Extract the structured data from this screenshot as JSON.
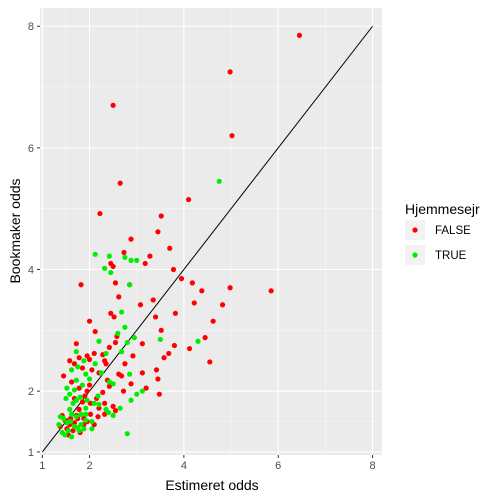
{
  "chart_data": {
    "type": "scatter",
    "title": "",
    "xlabel": "Estimeret odds",
    "ylabel": "Bookmaker odds",
    "xlim": [
      0.95,
      8.2
    ],
    "ylim": [
      0.95,
      8.3
    ],
    "x_ticks": [
      1,
      2,
      4,
      6,
      8
    ],
    "y_ticks": [
      1,
      2,
      4,
      6,
      8
    ],
    "grid": true,
    "background": "#ebebeb",
    "reference_line": {
      "type": "identity",
      "from": [
        1,
        1
      ],
      "to": [
        8,
        8
      ],
      "color": "#000000"
    },
    "legend": {
      "title": "Hjemmesejr",
      "position": "right",
      "entries": [
        {
          "label": "FALSE",
          "color": "#ff0000"
        },
        {
          "label": "TRUE",
          "color": "#00ee00"
        }
      ]
    },
    "series": [
      {
        "name": "FALSE",
        "color": "#ff0000",
        "points": [
          [
            6.45,
            7.85
          ],
          [
            4.98,
            7.25
          ],
          [
            5.02,
            6.2
          ],
          [
            2.5,
            6.7
          ],
          [
            2.65,
            5.42
          ],
          [
            4.1,
            5.15
          ],
          [
            2.22,
            4.92
          ],
          [
            3.52,
            4.88
          ],
          [
            3.45,
            4.62
          ],
          [
            2.88,
            4.5
          ],
          [
            3.7,
            4.35
          ],
          [
            2.73,
            4.28
          ],
          [
            3.28,
            4.22
          ],
          [
            3.18,
            4.1
          ],
          [
            2.45,
            4.1
          ],
          [
            2.5,
            4.05
          ],
          [
            3.78,
            4.0
          ],
          [
            3.95,
            3.85
          ],
          [
            4.18,
            3.78
          ],
          [
            2.55,
            3.78
          ],
          [
            2.85,
            3.75
          ],
          [
            1.82,
            3.75
          ],
          [
            4.38,
            3.65
          ],
          [
            4.98,
            3.7
          ],
          [
            5.85,
            3.65
          ],
          [
            2.62,
            3.55
          ],
          [
            3.35,
            3.5
          ],
          [
            4.22,
            3.45
          ],
          [
            3.08,
            3.42
          ],
          [
            4.82,
            3.42
          ],
          [
            2.45,
            3.28
          ],
          [
            2.52,
            3.22
          ],
          [
            3.4,
            3.22
          ],
          [
            3.82,
            3.28
          ],
          [
            4.62,
            3.15
          ],
          [
            2.0,
            3.15
          ],
          [
            3.52,
            3.0
          ],
          [
            2.12,
            2.98
          ],
          [
            4.45,
            2.88
          ],
          [
            2.58,
            2.9
          ],
          [
            2.55,
            2.8
          ],
          [
            3.12,
            2.78
          ],
          [
            1.72,
            2.78
          ],
          [
            2.42,
            2.72
          ],
          [
            2.1,
            2.62
          ],
          [
            2.92,
            2.58
          ],
          [
            2.28,
            2.6
          ],
          [
            1.95,
            2.58
          ],
          [
            1.78,
            2.55
          ],
          [
            3.8,
            2.75
          ],
          [
            4.12,
            2.7
          ],
          [
            3.68,
            2.62
          ],
          [
            2.32,
            2.5
          ],
          [
            3.58,
            2.55
          ],
          [
            4.55,
            2.48
          ],
          [
            1.58,
            2.5
          ],
          [
            1.68,
            2.45
          ],
          [
            2.0,
            2.52
          ],
          [
            2.35,
            2.45
          ],
          [
            2.75,
            2.45
          ],
          [
            3.42,
            2.35
          ],
          [
            2.05,
            2.35
          ],
          [
            1.85,
            2.38
          ],
          [
            3.12,
            2.3
          ],
          [
            2.2,
            2.3
          ],
          [
            2.62,
            2.28
          ],
          [
            1.45,
            2.25
          ],
          [
            2.68,
            2.25
          ],
          [
            2.38,
            2.18
          ],
          [
            3.45,
            2.2
          ],
          [
            2.88,
            2.12
          ],
          [
            3.2,
            2.05
          ],
          [
            2.0,
            2.1
          ],
          [
            1.62,
            2.15
          ],
          [
            1.78,
            2.05
          ],
          [
            2.42,
            2.08
          ],
          [
            2.72,
            2.0
          ],
          [
            2.28,
            1.98
          ],
          [
            1.95,
            2.0
          ],
          [
            3.48,
            1.95
          ],
          [
            1.9,
            1.92
          ],
          [
            2.15,
            1.88
          ],
          [
            1.68,
            1.88
          ],
          [
            1.85,
            1.82
          ],
          [
            2.32,
            1.8
          ],
          [
            2.02,
            1.8
          ],
          [
            2.5,
            1.75
          ],
          [
            2.2,
            1.72
          ],
          [
            2.55,
            1.68
          ],
          [
            1.78,
            1.7
          ],
          [
            2.02,
            1.62
          ],
          [
            2.32,
            1.62
          ],
          [
            1.72,
            1.6
          ],
          [
            2.18,
            1.58
          ],
          [
            1.88,
            1.55
          ],
          [
            1.42,
            1.6
          ],
          [
            1.6,
            1.55
          ],
          [
            1.48,
            1.52
          ],
          [
            1.95,
            1.5
          ],
          [
            1.68,
            1.48
          ],
          [
            1.88,
            1.45
          ],
          [
            1.58,
            1.45
          ],
          [
            2.1,
            1.45
          ],
          [
            1.75,
            1.55
          ],
          [
            1.52,
            1.38
          ],
          [
            1.65,
            1.35
          ],
          [
            1.8,
            1.32
          ],
          [
            1.38,
            1.42
          ],
          [
            1.55,
            1.28
          ]
        ]
      },
      {
        "name": "TRUE",
        "color": "#00ee00",
        "points": [
          [
            4.75,
            5.45
          ],
          [
            2.12,
            4.25
          ],
          [
            2.42,
            4.22
          ],
          [
            2.75,
            4.2
          ],
          [
            2.88,
            4.15
          ],
          [
            3.0,
            4.15
          ],
          [
            2.32,
            4.02
          ],
          [
            2.45,
            3.95
          ],
          [
            2.85,
            3.75
          ],
          [
            2.68,
            3.3
          ],
          [
            2.75,
            3.05
          ],
          [
            2.95,
            2.88
          ],
          [
            2.6,
            2.95
          ],
          [
            3.5,
            2.85
          ],
          [
            4.3,
            2.82
          ],
          [
            2.2,
            2.82
          ],
          [
            2.8,
            2.8
          ],
          [
            2.68,
            2.65
          ],
          [
            2.35,
            2.62
          ],
          [
            1.72,
            2.65
          ],
          [
            1.88,
            2.5
          ],
          [
            2.12,
            2.45
          ],
          [
            1.75,
            2.4
          ],
          [
            1.62,
            2.35
          ],
          [
            2.25,
            2.3
          ],
          [
            1.92,
            2.28
          ],
          [
            2.85,
            2.28
          ],
          [
            2.0,
            2.2
          ],
          [
            1.72,
            2.18
          ],
          [
            2.42,
            2.15
          ],
          [
            2.5,
            2.12
          ],
          [
            1.85,
            2.1
          ],
          [
            1.52,
            2.05
          ],
          [
            1.68,
            2.02
          ],
          [
            1.58,
            1.95
          ],
          [
            3.12,
            2.0
          ],
          [
            3.0,
            1.95
          ],
          [
            2.18,
            1.92
          ],
          [
            1.8,
            1.9
          ],
          [
            1.72,
            1.85
          ],
          [
            1.95,
            1.85
          ],
          [
            2.88,
            1.85
          ],
          [
            1.5,
            1.88
          ],
          [
            1.65,
            1.8
          ],
          [
            2.1,
            1.8
          ],
          [
            2.2,
            1.78
          ],
          [
            2.65,
            1.72
          ],
          [
            1.92,
            1.72
          ],
          [
            2.35,
            1.7
          ],
          [
            1.58,
            1.7
          ],
          [
            2.4,
            1.65
          ],
          [
            1.82,
            1.62
          ],
          [
            1.62,
            1.62
          ],
          [
            2.5,
            1.6
          ],
          [
            1.72,
            1.58
          ],
          [
            1.38,
            1.58
          ],
          [
            1.45,
            1.55
          ],
          [
            1.92,
            1.52
          ],
          [
            1.6,
            1.5
          ],
          [
            2.05,
            1.5
          ],
          [
            1.52,
            1.48
          ],
          [
            1.82,
            1.45
          ],
          [
            1.35,
            1.45
          ],
          [
            1.68,
            1.42
          ],
          [
            1.75,
            1.4
          ],
          [
            1.88,
            1.38
          ],
          [
            1.55,
            1.35
          ],
          [
            2.05,
            1.38
          ],
          [
            1.48,
            1.28
          ],
          [
            1.62,
            1.25
          ],
          [
            1.78,
            1.35
          ],
          [
            1.42,
            1.32
          ],
          [
            2.8,
            1.3
          ],
          [
            1.92,
            1.62
          ]
        ]
      }
    ]
  }
}
